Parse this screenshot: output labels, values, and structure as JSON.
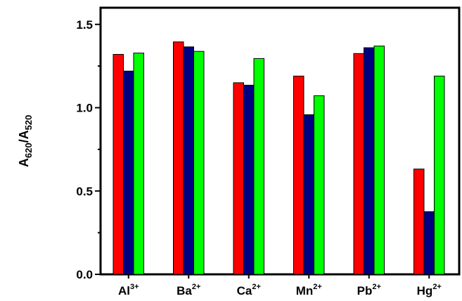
{
  "chart_data": {
    "type": "bar",
    "categories": [
      {
        "base": "Al",
        "charge": "3+"
      },
      {
        "base": "Ba",
        "charge": "2+"
      },
      {
        "base": "Ca",
        "charge": "2+"
      },
      {
        "base": "Mn",
        "charge": "2+"
      },
      {
        "base": "Pb",
        "charge": "2+"
      },
      {
        "base": "Hg",
        "charge": "2+"
      }
    ],
    "series": [
      {
        "color": "#ff0000",
        "values": [
          1.32,
          1.395,
          1.15,
          1.19,
          1.325,
          0.632
        ]
      },
      {
        "color": "#000080",
        "values": [
          1.22,
          1.365,
          1.135,
          0.958,
          1.36,
          0.376
        ]
      },
      {
        "color": "#00ff00",
        "values": [
          1.328,
          1.338,
          1.295,
          1.072,
          1.37,
          1.19
        ]
      }
    ],
    "ylabel": {
      "main": "A",
      "sub1": "620",
      "sep": "/A",
      "sub2": "520"
    },
    "ylim": [
      0,
      1.6
    ],
    "yticks": [
      {
        "value": 0,
        "label": "0.0"
      },
      {
        "value": 0.5,
        "label": "0.5"
      },
      {
        "value": 1.0,
        "label": "1.0"
      },
      {
        "value": 1.5,
        "label": "1.5"
      }
    ],
    "grid": false,
    "legend": "none"
  }
}
